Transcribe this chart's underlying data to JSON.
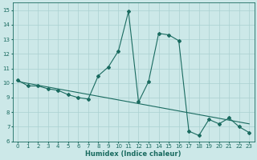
{
  "xlabel": "Humidex (Indice chaleur)",
  "ylabel": "",
  "bg_color": "#cce8e8",
  "line_color": "#1a6b60",
  "grid_color": "#aad0d0",
  "xlim": [
    -0.5,
    23.5
  ],
  "ylim": [
    6.0,
    15.5
  ],
  "xticks": [
    0,
    1,
    2,
    3,
    4,
    5,
    6,
    7,
    8,
    9,
    10,
    11,
    12,
    13,
    14,
    15,
    16,
    17,
    18,
    19,
    20,
    21,
    22,
    23
  ],
  "yticks": [
    6,
    7,
    8,
    9,
    10,
    11,
    12,
    13,
    14,
    15
  ],
  "curve_x": [
    0,
    1,
    2,
    3,
    4,
    5,
    6,
    7,
    8,
    9,
    10,
    11,
    12,
    13,
    14,
    15,
    16,
    17,
    18,
    19,
    20,
    21,
    22,
    23
  ],
  "curve_y": [
    10.2,
    9.8,
    9.8,
    9.6,
    9.5,
    9.2,
    9.0,
    8.9,
    10.5,
    11.1,
    12.2,
    14.9,
    8.7,
    10.1,
    13.4,
    13.3,
    12.9,
    6.7,
    6.4,
    7.5,
    7.2,
    7.6,
    7.0,
    6.6
  ],
  "trend_y_start": 10.1,
  "trend_y_end": 7.2,
  "xlabel_fontsize": 6,
  "tick_fontsize": 5,
  "xlabel_fontweight": "bold"
}
